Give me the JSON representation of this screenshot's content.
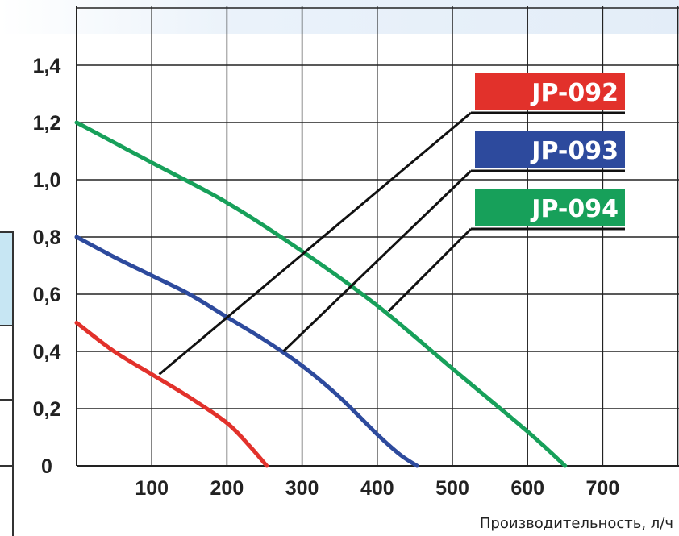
{
  "chart_data": {
    "type": "line",
    "xlabel": "Производительность, л/ч",
    "ylabel": "",
    "xlim": [
      0,
      800
    ],
    "ylim": [
      0,
      1.5
    ],
    "x_ticks": [
      "100",
      "200",
      "300",
      "400",
      "500",
      "600",
      "700"
    ],
    "y_ticks": [
      "0",
      "0,2",
      "0,4",
      "0,6",
      "0,8",
      "1,0",
      "1,2",
      "1,4"
    ],
    "grid": true,
    "legend_position": "top-right",
    "series": [
      {
        "name": "JP-092",
        "color": "#e2312b",
        "x": [
          0,
          50,
          100,
          150,
          200,
          230,
          253
        ],
        "y": [
          0.5,
          0.4,
          0.32,
          0.24,
          0.15,
          0.07,
          0.0
        ]
      },
      {
        "name": "JP-093",
        "color": "#2d4a9d",
        "x": [
          0,
          50,
          100,
          150,
          200,
          250,
          300,
          350,
          400,
          430,
          453
        ],
        "y": [
          0.8,
          0.73,
          0.665,
          0.6,
          0.52,
          0.44,
          0.35,
          0.24,
          0.11,
          0.04,
          0.0
        ]
      },
      {
        "name": "JP-094",
        "color": "#17a05a",
        "x": [
          0,
          100,
          200,
          300,
          400,
          500,
          600,
          650
        ],
        "y": [
          1.2,
          1.06,
          0.92,
          0.75,
          0.56,
          0.34,
          0.12,
          0.0
        ]
      }
    ]
  }
}
